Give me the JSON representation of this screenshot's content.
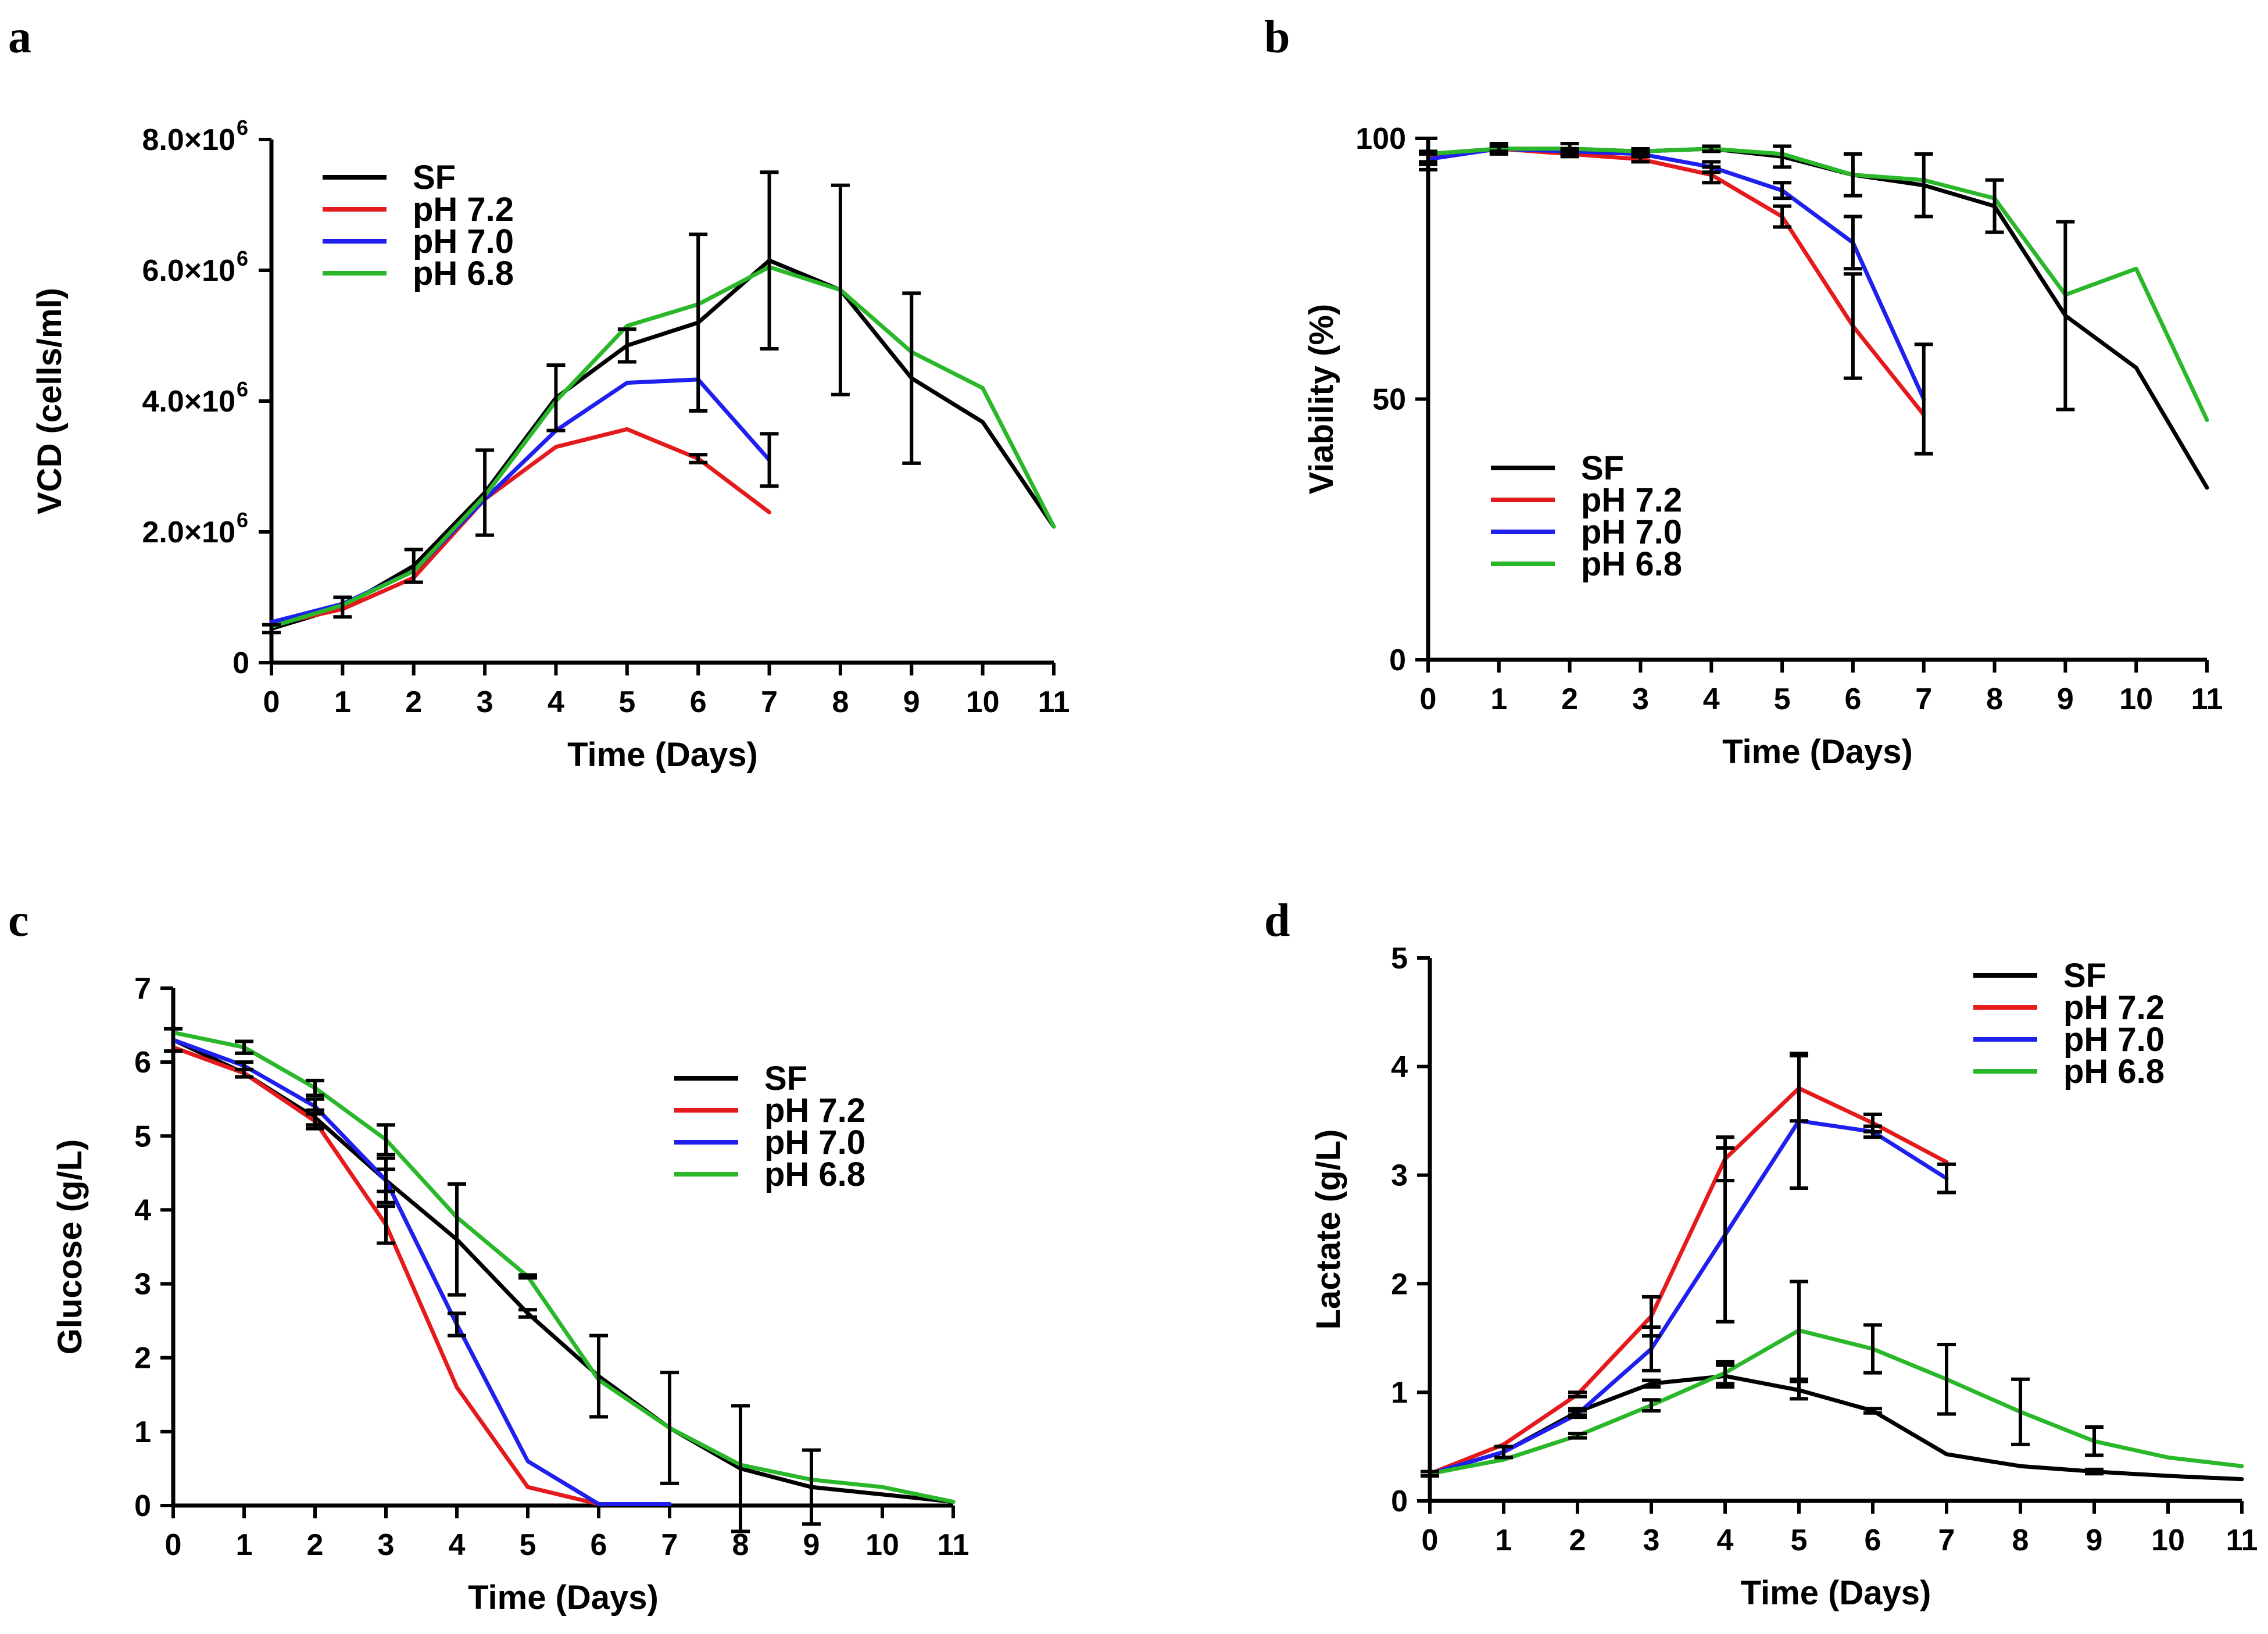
{
  "colors": {
    "SF": "#000000",
    "pH 7.2": "#e41a1c",
    "pH 7.0": "#1f1fee",
    "pH 6.8": "#2ab72a"
  },
  "chart_data": [
    {
      "panel": "a",
      "type": "line",
      "xlabel": "Time (Days)",
      "ylabel": "VCD (cells/ml)",
      "xlim": [
        0,
        11
      ],
      "ylim": [
        0,
        8000000
      ],
      "x_ticks": [
        0,
        1,
        2,
        3,
        4,
        5,
        6,
        7,
        8,
        9,
        10,
        11
      ],
      "y_ticks": [
        0,
        2000000,
        4000000,
        6000000,
        8000000
      ],
      "y_tick_mantissa": [
        "0",
        "2.0×10",
        "4.0×10",
        "6.0×10",
        "8.0×10"
      ],
      "y_tick_exponent": [
        "",
        "6",
        "6",
        "6",
        "6"
      ],
      "legend_position": "top-left",
      "series": [
        {
          "name": "SF",
          "x": [
            0,
            1,
            2,
            3,
            4,
            5,
            6,
            7,
            8,
            9,
            10,
            11
          ],
          "values": [
            520000,
            850000,
            1480000,
            2600000,
            4050000,
            4850000,
            5200000,
            6150000,
            5700000,
            4350000,
            3680000,
            2080000
          ],
          "err": [
            60000,
            150000,
            250000,
            650000,
            500000,
            250000,
            1350000,
            1350000,
            1600000,
            1300000,
            0,
            0
          ]
        },
        {
          "name": "pH 7.2",
          "x": [
            0,
            1,
            2,
            3,
            4,
            5,
            6,
            7
          ],
          "values": [
            580000,
            820000,
            1300000,
            2500000,
            3300000,
            3570000,
            3120000,
            2300000
          ],
          "err": [
            0,
            0,
            0,
            0,
            0,
            0,
            60000,
            0
          ]
        },
        {
          "name": "pH 7.0",
          "x": [
            0,
            1,
            2,
            3,
            4,
            5,
            6,
            7
          ],
          "values": [
            620000,
            900000,
            1400000,
            2500000,
            3550000,
            4280000,
            4330000,
            3100000
          ],
          "err": [
            0,
            0,
            0,
            0,
            0,
            0,
            0,
            400000
          ]
        },
        {
          "name": "pH 6.8",
          "x": [
            0,
            1,
            2,
            3,
            4,
            5,
            6,
            7,
            8,
            9,
            10,
            11
          ],
          "values": [
            550000,
            880000,
            1400000,
            2550000,
            4000000,
            5150000,
            5480000,
            6050000,
            5700000,
            4750000,
            4200000,
            2080000
          ],
          "err": [
            0,
            0,
            0,
            0,
            0,
            0,
            0,
            0,
            0,
            0,
            0,
            0
          ]
        }
      ]
    },
    {
      "panel": "b",
      "type": "line",
      "xlabel": "Time (Days)",
      "ylabel": "Viability (%)",
      "xlim": [
        0,
        11
      ],
      "ylim": [
        0,
        100
      ],
      "x_ticks": [
        0,
        1,
        2,
        3,
        4,
        5,
        6,
        7,
        8,
        9,
        10,
        11
      ],
      "y_ticks": [
        0,
        50,
        100
      ],
      "y_tick_mantissa": [
        "0",
        "50",
        "100"
      ],
      "y_tick_exponent": [
        "",
        "",
        ""
      ],
      "legend_position": "lower-left",
      "series": [
        {
          "name": "SF",
          "x": [
            0,
            1,
            2,
            3,
            4,
            5,
            6,
            7,
            8,
            9,
            10,
            11
          ],
          "values": [
            97,
            98,
            98,
            97.5,
            98,
            96.5,
            93,
            91,
            87,
            66,
            56,
            33
          ],
          "err": [
            3,
            1,
            1,
            0.5,
            0.5,
            2,
            4,
            6,
            5,
            18,
            0,
            0
          ]
        },
        {
          "name": "pH 7.2",
          "x": [
            0,
            1,
            2,
            3,
            4,
            5,
            6,
            7
          ],
          "values": [
            96.5,
            98,
            97,
            96,
            93,
            85,
            64,
            47
          ],
          "err": [
            1,
            0.5,
            0.5,
            0.5,
            1.5,
            2,
            10,
            0
          ]
        },
        {
          "name": "pH 7.0",
          "x": [
            0,
            1,
            2,
            3,
            4,
            5,
            6,
            7
          ],
          "values": [
            96,
            98,
            97.5,
            97,
            94.5,
            90,
            80,
            50
          ],
          "err": [
            1,
            0.5,
            0.5,
            0.5,
            1,
            1.5,
            5,
            10.5
          ]
        },
        {
          "name": "pH 6.8",
          "x": [
            0,
            1,
            2,
            3,
            4,
            5,
            6,
            7,
            8,
            9,
            10,
            11
          ],
          "values": [
            97,
            98,
            98,
            97.5,
            98,
            97,
            93,
            92,
            88.5,
            70,
            75,
            46
          ],
          "err": [
            0,
            0,
            0,
            0,
            0,
            0,
            0,
            0,
            0,
            0,
            0,
            0
          ]
        }
      ]
    },
    {
      "panel": "c",
      "type": "line",
      "xlabel": "Time (Days)",
      "ylabel": "Glucose (g/L)",
      "xlim": [
        0,
        11
      ],
      "ylim": [
        0,
        7
      ],
      "x_ticks": [
        0,
        1,
        2,
        3,
        4,
        5,
        6,
        7,
        8,
        9,
        10,
        11
      ],
      "y_ticks": [
        0,
        1,
        2,
        3,
        4,
        5,
        6,
        7
      ],
      "y_tick_mantissa": [
        "0",
        "1",
        "2",
        "3",
        "4",
        "5",
        "6",
        "7"
      ],
      "y_tick_exponent": [
        "",
        "",
        "",
        "",
        "",
        "",
        "",
        ""
      ],
      "legend_position": "right",
      "series": [
        {
          "name": "SF",
          "x": [
            0,
            1,
            2,
            3,
            4,
            5,
            6,
            7,
            8,
            9,
            10,
            11
          ],
          "values": [
            6.3,
            5.85,
            5.25,
            4.4,
            3.6,
            2.6,
            1.75,
            1.05,
            0.5,
            0.25,
            0.15,
            0.05
          ],
          "err": [
            0.15,
            0.05,
            0.1,
            0.3,
            0.75,
            0.05,
            0.55,
            0.75,
            0.85,
            0.5,
            0,
            0
          ]
        },
        {
          "name": "pH 7.2",
          "x": [
            0,
            1,
            2,
            3,
            4,
            5,
            6,
            7
          ],
          "values": [
            6.2,
            5.85,
            5.2,
            3.8,
            1.6,
            0.25,
            0.02,
            0.02
          ],
          "err": [
            0,
            0,
            0.1,
            0.25,
            0,
            0,
            0,
            0
          ]
        },
        {
          "name": "pH 7.0",
          "x": [
            0,
            1,
            2,
            3,
            4,
            5,
            6,
            7
          ],
          "values": [
            6.3,
            5.95,
            5.4,
            4.4,
            2.45,
            0.6,
            0.02,
            0.02
          ],
          "err": [
            0,
            0.05,
            0.1,
            0.15,
            0.15,
            0,
            0,
            0
          ]
        },
        {
          "name": "pH 6.8",
          "x": [
            0,
            1,
            2,
            3,
            4,
            5,
            6,
            7,
            8,
            9,
            10,
            11
          ],
          "values": [
            6.4,
            6.2,
            5.65,
            4.95,
            3.9,
            3.1,
            1.7,
            1.05,
            0.55,
            0.35,
            0.25,
            0.05
          ],
          "err": [
            0,
            0.08,
            0.1,
            0.2,
            0,
            0.02,
            0,
            0,
            0,
            0,
            0,
            0
          ]
        }
      ]
    },
    {
      "panel": "d",
      "type": "line",
      "xlabel": "Time (Days)",
      "ylabel": "Lactate (g/L)",
      "xlim": [
        0,
        11
      ],
      "ylim": [
        0,
        5
      ],
      "x_ticks": [
        0,
        1,
        2,
        3,
        4,
        5,
        6,
        7,
        8,
        9,
        10,
        11
      ],
      "y_ticks": [
        0,
        1,
        2,
        3,
        4,
        5
      ],
      "y_tick_mantissa": [
        "0",
        "1",
        "2",
        "3",
        "4",
        "5"
      ],
      "y_tick_exponent": [
        "",
        "",
        "",
        "",
        "",
        ""
      ],
      "legend_position": "top-right",
      "series": [
        {
          "name": "SF",
          "x": [
            0,
            1,
            2,
            3,
            4,
            5,
            6,
            7,
            8,
            9,
            10,
            11
          ],
          "values": [
            0.25,
            0.45,
            0.82,
            1.08,
            1.15,
            1.02,
            0.83,
            0.43,
            0.32,
            0.27,
            0.23,
            0.2
          ],
          "err": [
            0.02,
            0.05,
            0.03,
            0.03,
            0.1,
            0.08,
            0.02,
            0,
            0,
            0.02,
            0,
            0
          ]
        },
        {
          "name": "pH 7.2",
          "x": [
            0,
            1,
            2,
            3,
            4,
            5,
            6,
            7
          ],
          "values": [
            0.25,
            0.52,
            0.98,
            1.7,
            3.15,
            3.8,
            3.48,
            3.12
          ],
          "err": [
            0,
            0,
            0.02,
            0.18,
            0.2,
            0.3,
            0.08,
            0
          ]
        },
        {
          "name": "pH 7.0",
          "x": [
            0,
            1,
            2,
            3,
            4,
            5,
            6,
            7
          ],
          "values": [
            0.25,
            0.45,
            0.8,
            1.4,
            2.45,
            3.5,
            3.4,
            2.97
          ],
          "err": [
            0,
            0.05,
            0.03,
            0.2,
            0.8,
            0.62,
            0.05,
            0.13
          ]
        },
        {
          "name": "pH 6.8",
          "x": [
            0,
            1,
            2,
            3,
            4,
            5,
            6,
            7,
            8,
            9,
            10,
            11
          ],
          "values": [
            0.25,
            0.38,
            0.6,
            0.88,
            1.18,
            1.57,
            1.4,
            1.12,
            0.82,
            0.55,
            0.4,
            0.32
          ],
          "err": [
            0,
            0,
            0.02,
            0.05,
            0.1,
            0.45,
            0.22,
            0.32,
            0.3,
            0.13,
            0,
            0
          ]
        }
      ]
    }
  ]
}
